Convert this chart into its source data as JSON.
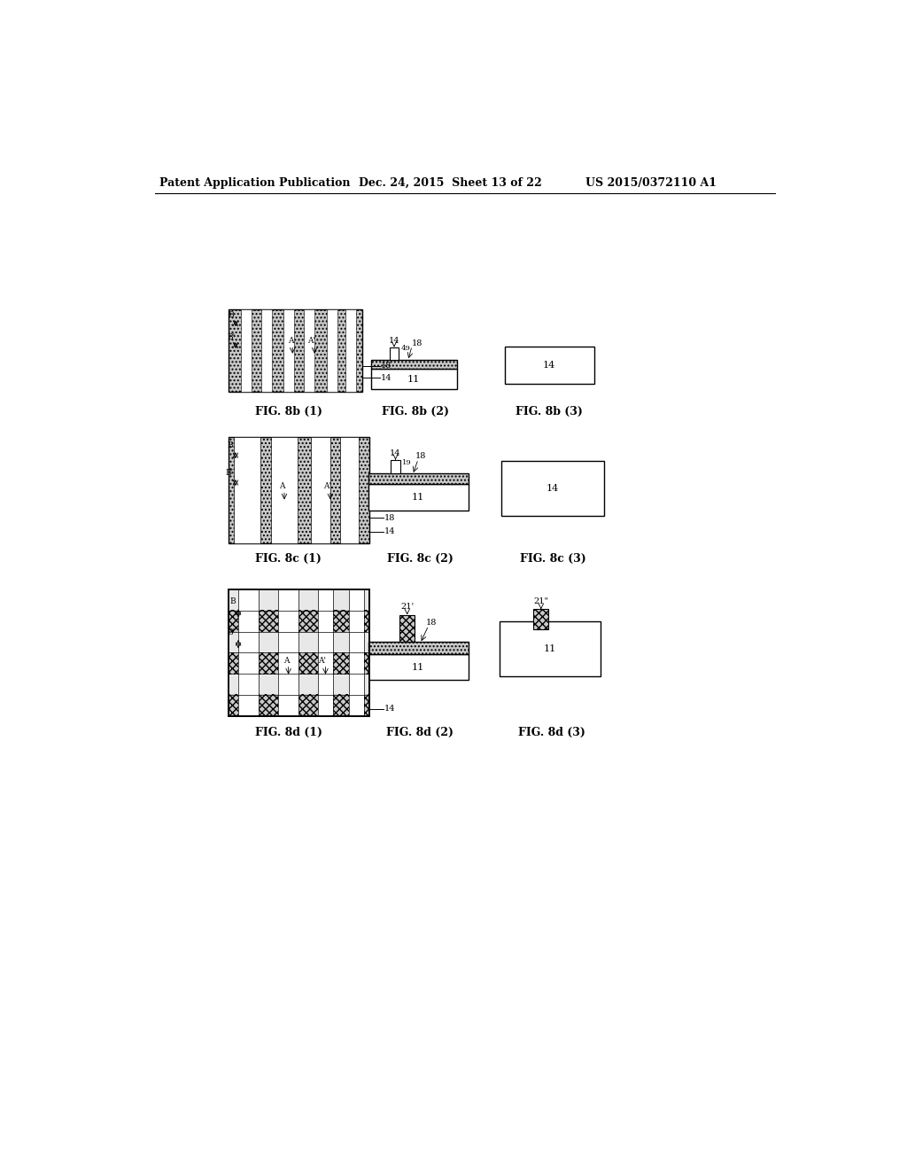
{
  "bg_color": "#ffffff",
  "header_left": "Patent Application Publication",
  "header_mid": "Dec. 24, 2015  Sheet 13 of 22",
  "header_right": "US 2015/0372110 A1",
  "hatch_dot": "....",
  "hatch_cross": "xxxx",
  "gray_fill": "#c8c8c8",
  "dark_gray": "#909090"
}
